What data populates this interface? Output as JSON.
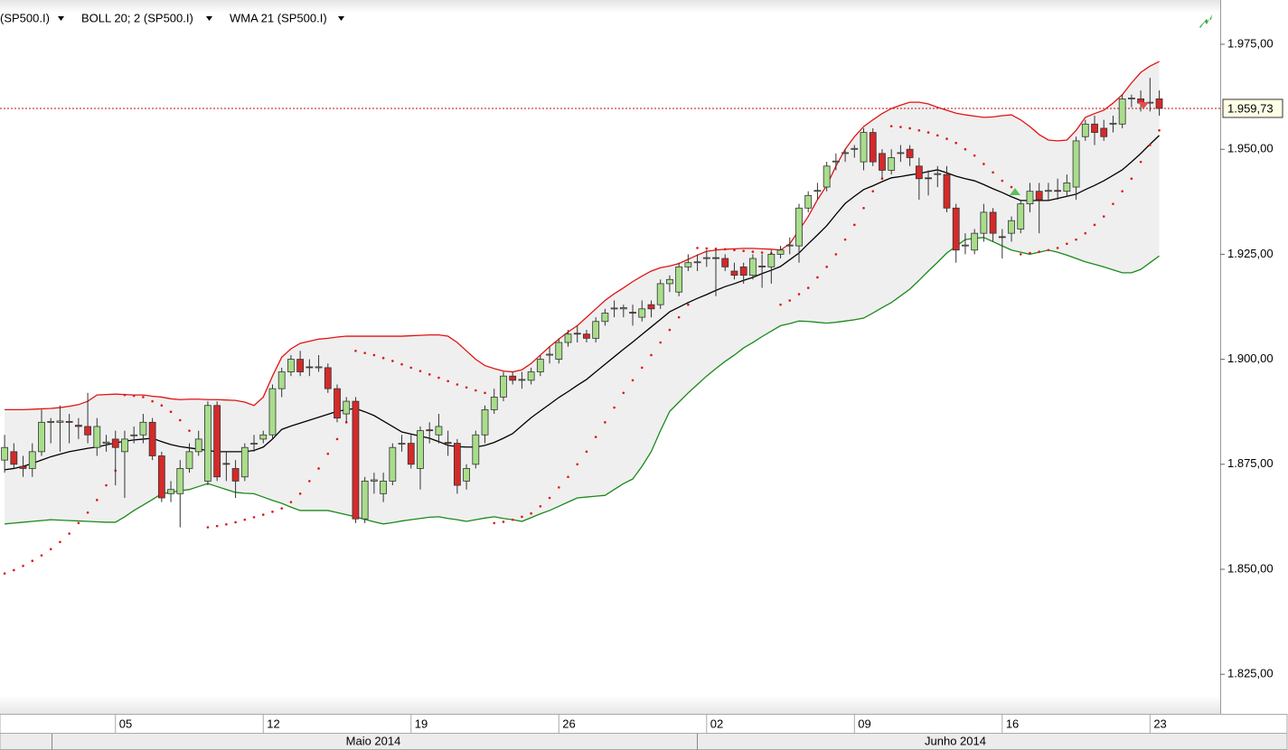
{
  "chart_data": {
    "type": "candlestick",
    "symbol": "(SP500.I)",
    "symbol_color": "#d01010",
    "up_color": "#a9dd8c",
    "down_color": "#d42a2a",
    "months": [
      "Maio 2014",
      "Junho 2014"
    ],
    "xlim": [
      -0.5,
      131.6
    ],
    "xticks": [
      {
        "value": 12,
        "label": "05"
      },
      {
        "value": 28,
        "label": "12"
      },
      {
        "value": 44,
        "label": "19"
      },
      {
        "value": 60,
        "label": "26"
      },
      {
        "value": 76,
        "label": "02"
      },
      {
        "value": 92,
        "label": "09"
      },
      {
        "value": 108,
        "label": "16"
      },
      {
        "value": 124,
        "label": "23"
      }
    ],
    "ylim": [
      1815.58,
      1985.54
    ],
    "yticks": [
      {
        "value": 1825,
        "label": "1.825,00"
      },
      {
        "value": 1850,
        "label": "1.850,00"
      },
      {
        "value": 1875,
        "label": "1.875,00"
      },
      {
        "value": 1900,
        "label": "1.900,00"
      },
      {
        "value": 1925,
        "label": "1.925,00"
      },
      {
        "value": 1950,
        "label": "1.950,00"
      },
      {
        "value": 1975,
        "label": "1.975,00"
      }
    ],
    "last_price": {
      "value": 1959.73,
      "label": "1.959,73"
    },
    "ohlc": [
      [
        1876,
        1882,
        1873,
        1879
      ],
      [
        1878,
        1880,
        1874,
        1875
      ],
      [
        1874.5,
        1877,
        1872,
        1874
      ],
      [
        1874,
        1880,
        1872,
        1878
      ],
      [
        1878,
        1888,
        1877,
        1885
      ],
      [
        1885,
        1886,
        1880,
        1885.2
      ],
      [
        1885,
        1889,
        1878,
        1885.3
      ],
      [
        1885.2,
        1887,
        1880,
        1885
      ],
      [
        1884.3,
        1886,
        1881,
        1884
      ],
      [
        1884,
        1892,
        1880,
        1882
      ],
      [
        1879,
        1886,
        1877,
        1884
      ],
      [
        1880,
        1882,
        1878,
        1880.3
      ],
      [
        1881,
        1883,
        1870,
        1879
      ],
      [
        1878,
        1883,
        1867,
        1881
      ],
      [
        1881.8,
        1884,
        1880,
        1882
      ],
      [
        1882,
        1887,
        1880,
        1885
      ],
      [
        1885,
        1886,
        1876,
        1877
      ],
      [
        1877,
        1878,
        1866,
        1867
      ],
      [
        1868,
        1871,
        1866,
        1869
      ],
      [
        1868,
        1876,
        1860,
        1874
      ],
      [
        1874,
        1880,
        1873,
        1878
      ],
      [
        1878,
        1883,
        1877,
        1881
      ],
      [
        1871,
        1890,
        1870,
        1889
      ],
      [
        1889,
        1890,
        1871,
        1872
      ],
      [
        1875.2,
        1878,
        1871,
        1875
      ],
      [
        1874,
        1876,
        1867,
        1871
      ],
      [
        1872,
        1880,
        1871,
        1879
      ],
      [
        1879.8,
        1882,
        1878,
        1880
      ],
      [
        1881,
        1883,
        1880,
        1882
      ],
      [
        1882,
        1894,
        1881,
        1893
      ],
      [
        1893,
        1898,
        1891,
        1897
      ],
      [
        1897,
        1901,
        1896,
        1900
      ],
      [
        1900,
        1902,
        1896,
        1897
      ],
      [
        1898.2,
        1900,
        1896,
        1898
      ],
      [
        1898,
        1901,
        1897,
        1898.2
      ],
      [
        1898,
        1899,
        1892,
        1893
      ],
      [
        1893,
        1894,
        1885,
        1886
      ],
      [
        1887,
        1891,
        1885,
        1890
      ],
      [
        1890,
        1891,
        1861,
        1862
      ],
      [
        1862,
        1872,
        1861,
        1871
      ],
      [
        1871,
        1873,
        1868,
        1871.3
      ],
      [
        1868,
        1873,
        1866,
        1871
      ],
      [
        1871,
        1880,
        1870,
        1879
      ],
      [
        1879.8,
        1882,
        1878,
        1880
      ],
      [
        1880,
        1882,
        1874,
        1875
      ],
      [
        1874,
        1884,
        1869,
        1883
      ],
      [
        1883.2,
        1885,
        1880,
        1883
      ],
      [
        1882,
        1887,
        1880,
        1884
      ],
      [
        1880.2,
        1883,
        1877,
        1880
      ],
      [
        1880,
        1881,
        1868,
        1870
      ],
      [
        1871,
        1875,
        1869,
        1874
      ],
      [
        1875,
        1883,
        1874,
        1882
      ],
      [
        1882,
        1889,
        1880,
        1888
      ],
      [
        1888,
        1893,
        1887,
        1891
      ],
      [
        1891,
        1897,
        1890,
        1896
      ],
      [
        1896,
        1897,
        1894,
        1895
      ],
      [
        1895,
        1897,
        1893,
        1895.2
      ],
      [
        1895,
        1898,
        1894,
        1897
      ],
      [
        1897,
        1901,
        1896,
        1900
      ],
      [
        1901,
        1903,
        1899,
        1901.2
      ],
      [
        1900,
        1905,
        1899,
        1904
      ],
      [
        1904,
        1907,
        1903,
        1906
      ],
      [
        1906.2,
        1908,
        1904,
        1906
      ],
      [
        1906,
        1907,
        1904,
        1905
      ],
      [
        1905,
        1910,
        1904,
        1909
      ],
      [
        1909,
        1912,
        1908,
        1911
      ],
      [
        1912,
        1914,
        1910,
        1912.2
      ],
      [
        1912,
        1913,
        1910,
        1912.3
      ],
      [
        1911.2,
        1913,
        1908,
        1911
      ],
      [
        1910,
        1914,
        1909,
        1912
      ],
      [
        1913,
        1914,
        1910,
        1912
      ],
      [
        1913,
        1919,
        1912,
        1918
      ],
      [
        1918,
        1920,
        1916,
        1919
      ],
      [
        1916,
        1923,
        1915,
        1922
      ],
      [
        1922,
        1925,
        1921,
        1923
      ],
      [
        1923,
        1925,
        1921,
        1923.2
      ],
      [
        1924,
        1926,
        1922,
        1924.2
      ],
      [
        1924.2,
        1926,
        1915,
        1924
      ],
      [
        1924,
        1925,
        1921,
        1922
      ],
      [
        1921,
        1923,
        1919,
        1920
      ],
      [
        1922,
        1923,
        1918,
        1920
      ],
      [
        1920,
        1925,
        1919,
        1924
      ],
      [
        1922.2,
        1925,
        1917,
        1922
      ],
      [
        1922,
        1926,
        1918,
        1925
      ],
      [
        1925,
        1927,
        1924,
        1926
      ],
      [
        1927,
        1929,
        1925,
        1927.2
      ],
      [
        1927,
        1937,
        1923,
        1936
      ],
      [
        1936,
        1940,
        1935,
        1939
      ],
      [
        1940,
        1942,
        1938,
        1940.2
      ],
      [
        1941,
        1947,
        1940,
        1946
      ],
      [
        1947,
        1949,
        1945,
        1947.2
      ],
      [
        1949,
        1950,
        1947,
        1949.2
      ],
      [
        1950,
        1951,
        1948,
        1950.2
      ],
      [
        1947,
        1955,
        1945,
        1954
      ],
      [
        1954,
        1955,
        1946,
        1947
      ],
      [
        1949,
        1950,
        1943,
        1945
      ],
      [
        1945,
        1950,
        1944,
        1948
      ],
      [
        1949,
        1951,
        1947,
        1949.2
      ],
      [
        1950,
        1951,
        1946,
        1948
      ],
      [
        1946,
        1948,
        1938,
        1943
      ],
      [
        1943.2,
        1945,
        1939,
        1943
      ],
      [
        1944,
        1946,
        1941,
        1944.2
      ],
      [
        1944,
        1946,
        1935,
        1936
      ],
      [
        1936,
        1937,
        1923,
        1926
      ],
      [
        1927,
        1930,
        1925,
        1927.2
      ],
      [
        1926,
        1931,
        1925,
        1930
      ],
      [
        1930,
        1937,
        1928,
        1935
      ],
      [
        1935,
        1936,
        1928,
        1930
      ],
      [
        1929.2,
        1931,
        1924,
        1929
      ],
      [
        1930,
        1934,
        1928,
        1933
      ],
      [
        1931,
        1938,
        1930,
        1937
      ],
      [
        1937,
        1942,
        1935,
        1940
      ],
      [
        1940,
        1942,
        1930,
        1938
      ],
      [
        1940,
        1942,
        1938,
        1940.2
      ],
      [
        1940.2,
        1943,
        1938,
        1940
      ],
      [
        1940,
        1944,
        1939,
        1942
      ],
      [
        1941,
        1953,
        1938,
        1952
      ],
      [
        1953,
        1957,
        1952,
        1956
      ],
      [
        1956,
        1958,
        1951,
        1954
      ],
      [
        1955,
        1957,
        1952,
        1953
      ],
      [
        1956,
        1958,
        1954,
        1956.2
      ],
      [
        1956,
        1963,
        1955,
        1962
      ],
      [
        1962,
        1963,
        1960,
        1962.2
      ],
      [
        1962,
        1964,
        1959,
        1961
      ],
      [
        1961,
        1967,
        1959,
        1961.2
      ],
      [
        1962,
        1964,
        1958,
        1959.73
      ]
    ],
    "bollinger": {
      "name": "BOLL 20; 2 (SP500.I)",
      "upper_color": "#e01414",
      "lower_color": "#1a8a1a",
      "fill": "#efefef",
      "upper": [
        1888,
        1888,
        1888,
        1888.1,
        1888.2,
        1888.3,
        1888.5,
        1888.8,
        1889.2,
        1890,
        1891.5,
        1891.6,
        1891.7,
        1891.6,
        1891.5,
        1891.5,
        1891.2,
        1891,
        1890.6,
        1890.4,
        1890.5,
        1890.5,
        1890.4,
        1890.4,
        1890.3,
        1890.2,
        1889.8,
        1889,
        1891,
        1896,
        1900.5,
        1902.5,
        1903.8,
        1904.3,
        1904.8,
        1905,
        1905.3,
        1905.5,
        1905.5,
        1905.5,
        1905.5,
        1905.5,
        1905.5,
        1905.5,
        1905.6,
        1905.7,
        1905.8,
        1905.8,
        1905.5,
        1904,
        1902,
        1900,
        1898.5,
        1897.8,
        1897.2,
        1897,
        1897.5,
        1899,
        1901,
        1903,
        1904.8,
        1906.5,
        1908,
        1910,
        1912,
        1914,
        1915.6,
        1917,
        1918.5,
        1919.8,
        1921,
        1921.8,
        1922.2,
        1922.8,
        1923.8,
        1924.8,
        1925.7,
        1926,
        1926.2,
        1926.3,
        1926.4,
        1926.4,
        1926.3,
        1926.2,
        1926,
        1927.5,
        1930.7,
        1934,
        1938,
        1941.4,
        1946,
        1950,
        1953,
        1955.4,
        1957,
        1958.5,
        1959.7,
        1960.5,
        1961.2,
        1961.2,
        1960.8,
        1960,
        1959.3,
        1958.6,
        1958.2,
        1957.9,
        1957.6,
        1957.7,
        1958,
        1958.2,
        1957,
        1955.4,
        1953.5,
        1952.2,
        1952,
        1952.2,
        1954.5,
        1957.6,
        1958.5,
        1959.3,
        1961,
        1963,
        1965.8,
        1968.3,
        1969.8,
        1970.9
      ],
      "lower": [
        1860.8,
        1861,
        1861.2,
        1861.4,
        1861.6,
        1861.8,
        1861.7,
        1861.6,
        1861.5,
        1861.4,
        1861.3,
        1861.2,
        1861.2,
        1862.5,
        1864,
        1865.3,
        1866.6,
        1868,
        1868.3,
        1868.7,
        1869,
        1869.7,
        1870.4,
        1869.7,
        1869,
        1868.3,
        1868.1,
        1868,
        1867.2,
        1866.4,
        1865.7,
        1864.8,
        1864,
        1864,
        1864,
        1864,
        1863.5,
        1863,
        1862.5,
        1861.9,
        1861.3,
        1860.8,
        1861.1,
        1861.5,
        1861.8,
        1862.1,
        1862.4,
        1862.5,
        1862.1,
        1861.8,
        1861.4,
        1861.8,
        1862.2,
        1862.5,
        1862.1,
        1861.8,
        1861.4,
        1862.3,
        1863.2,
        1864,
        1865,
        1866,
        1867,
        1867.2,
        1867.4,
        1867.6,
        1869,
        1870.4,
        1871.5,
        1874.5,
        1878,
        1883,
        1887.6,
        1889.8,
        1892,
        1894,
        1896,
        1897.8,
        1899.5,
        1901,
        1902.7,
        1904,
        1905.4,
        1906.7,
        1908,
        1908.5,
        1909.1,
        1909,
        1908.8,
        1908.6,
        1908.8,
        1909.1,
        1909.4,
        1909.8,
        1911,
        1912.3,
        1913.5,
        1915.1,
        1916.7,
        1918.8,
        1921,
        1923.1,
        1925.3,
        1926.9,
        1928.5,
        1928.8,
        1929,
        1928,
        1927,
        1926,
        1925.5,
        1925,
        1925.5,
        1926,
        1925.5,
        1924.8,
        1924,
        1923.2,
        1922.6,
        1922,
        1921.3,
        1920.6,
        1920.6,
        1921.4,
        1923,
        1924.6
      ]
    },
    "wma": {
      "name": "WMA 21 (SP500.I)",
      "color": "#000000",
      "values": [
        1873.7,
        1874,
        1874.5,
        1875.2,
        1876,
        1876.8,
        1877.4,
        1878,
        1878.4,
        1878.8,
        1879.1,
        1879.6,
        1880.1,
        1880.5,
        1880.8,
        1881,
        1881.2,
        1880.4,
        1879.7,
        1879.2,
        1878.9,
        1878.6,
        1878.3,
        1878,
        1878,
        1878,
        1878,
        1878.3,
        1879.1,
        1881,
        1883.3,
        1884.1,
        1884.8,
        1885.5,
        1886.2,
        1886.9,
        1887.6,
        1888,
        1888.3,
        1887.5,
        1886.6,
        1885.3,
        1884,
        1882.7,
        1882.2,
        1881.7,
        1881.2,
        1880.4,
        1879.5,
        1879.2,
        1879.1,
        1879.1,
        1879.5,
        1880.2,
        1881.2,
        1882.3,
        1884.2,
        1886.1,
        1887.7,
        1889.3,
        1890.9,
        1892.3,
        1893.8,
        1895.2,
        1897,
        1898.8,
        1900.6,
        1902.4,
        1904.1,
        1905.9,
        1907.7,
        1909.5,
        1911.3,
        1912.4,
        1913.5,
        1914.5,
        1915.4,
        1916.4,
        1917.3,
        1918,
        1918.8,
        1919.5,
        1920.4,
        1921.2,
        1922.1,
        1923.7,
        1925.3,
        1927.5,
        1929.6,
        1931.8,
        1934.5,
        1937.1,
        1938.8,
        1940.4,
        1941.3,
        1942.3,
        1943.2,
        1943.5,
        1943.9,
        1944.2,
        1944.7,
        1945.1,
        1944.4,
        1943.6,
        1943,
        1942.5,
        1941.6,
        1940.6,
        1939.7,
        1938.7,
        1937.8,
        1937.8,
        1937.8,
        1937.8,
        1938.3,
        1938.8,
        1939.3,
        1940.4,
        1941.4,
        1942.5,
        1943.8,
        1945.1,
        1947,
        1949,
        1951.2,
        1953.3
      ]
    },
    "sar": {
      "color": "#e01414",
      "values": [
        1849,
        1849.8,
        1850.8,
        1852,
        1853.3,
        1854.8,
        1856.5,
        1858.5,
        1861,
        1863.5,
        1866.5,
        1870,
        1873.5,
        1891.5,
        1891.3,
        1891,
        1890,
        1889,
        1887.5,
        1885.5,
        1883,
        1880.5,
        1860,
        1860.3,
        1860.7,
        1861.2,
        1861.8,
        1862.4,
        1863,
        1863.7,
        1864.5,
        1866,
        1868,
        1871,
        1874,
        1877.5,
        1881,
        1885,
        1902,
        1901.5,
        1901,
        1900.3,
        1899.6,
        1898.8,
        1898,
        1897.2,
        1896.4,
        1895.6,
        1894.8,
        1894,
        1893.3,
        1892.6,
        1892,
        1861,
        1861.3,
        1861.8,
        1862.5,
        1863.3,
        1865,
        1867,
        1869.5,
        1872,
        1875,
        1878,
        1881.5,
        1885,
        1888.5,
        1892,
        1895,
        1898,
        1901,
        1904,
        1907,
        1910,
        1913,
        1926.5,
        1926.4,
        1926.3,
        1926.2,
        1926,
        1925.8,
        1925.6,
        1925.4,
        1925.2,
        1913,
        1914,
        1915.5,
        1917,
        1919.5,
        1922,
        1925,
        1928.5,
        1932,
        1936,
        1940,
        1943,
        1955.5,
        1955.3,
        1955,
        1954.5,
        1954,
        1953.3,
        1952.5,
        1951.5,
        1950,
        1948.5,
        1946.5,
        1944.5,
        1942.5,
        1941,
        1925,
        1925.3,
        1925.6,
        1926,
        1926.5,
        1927.5,
        1928.5,
        1930,
        1932,
        1934,
        1937,
        1940,
        1943,
        1947,
        1951,
        1954.5
      ]
    }
  }
}
